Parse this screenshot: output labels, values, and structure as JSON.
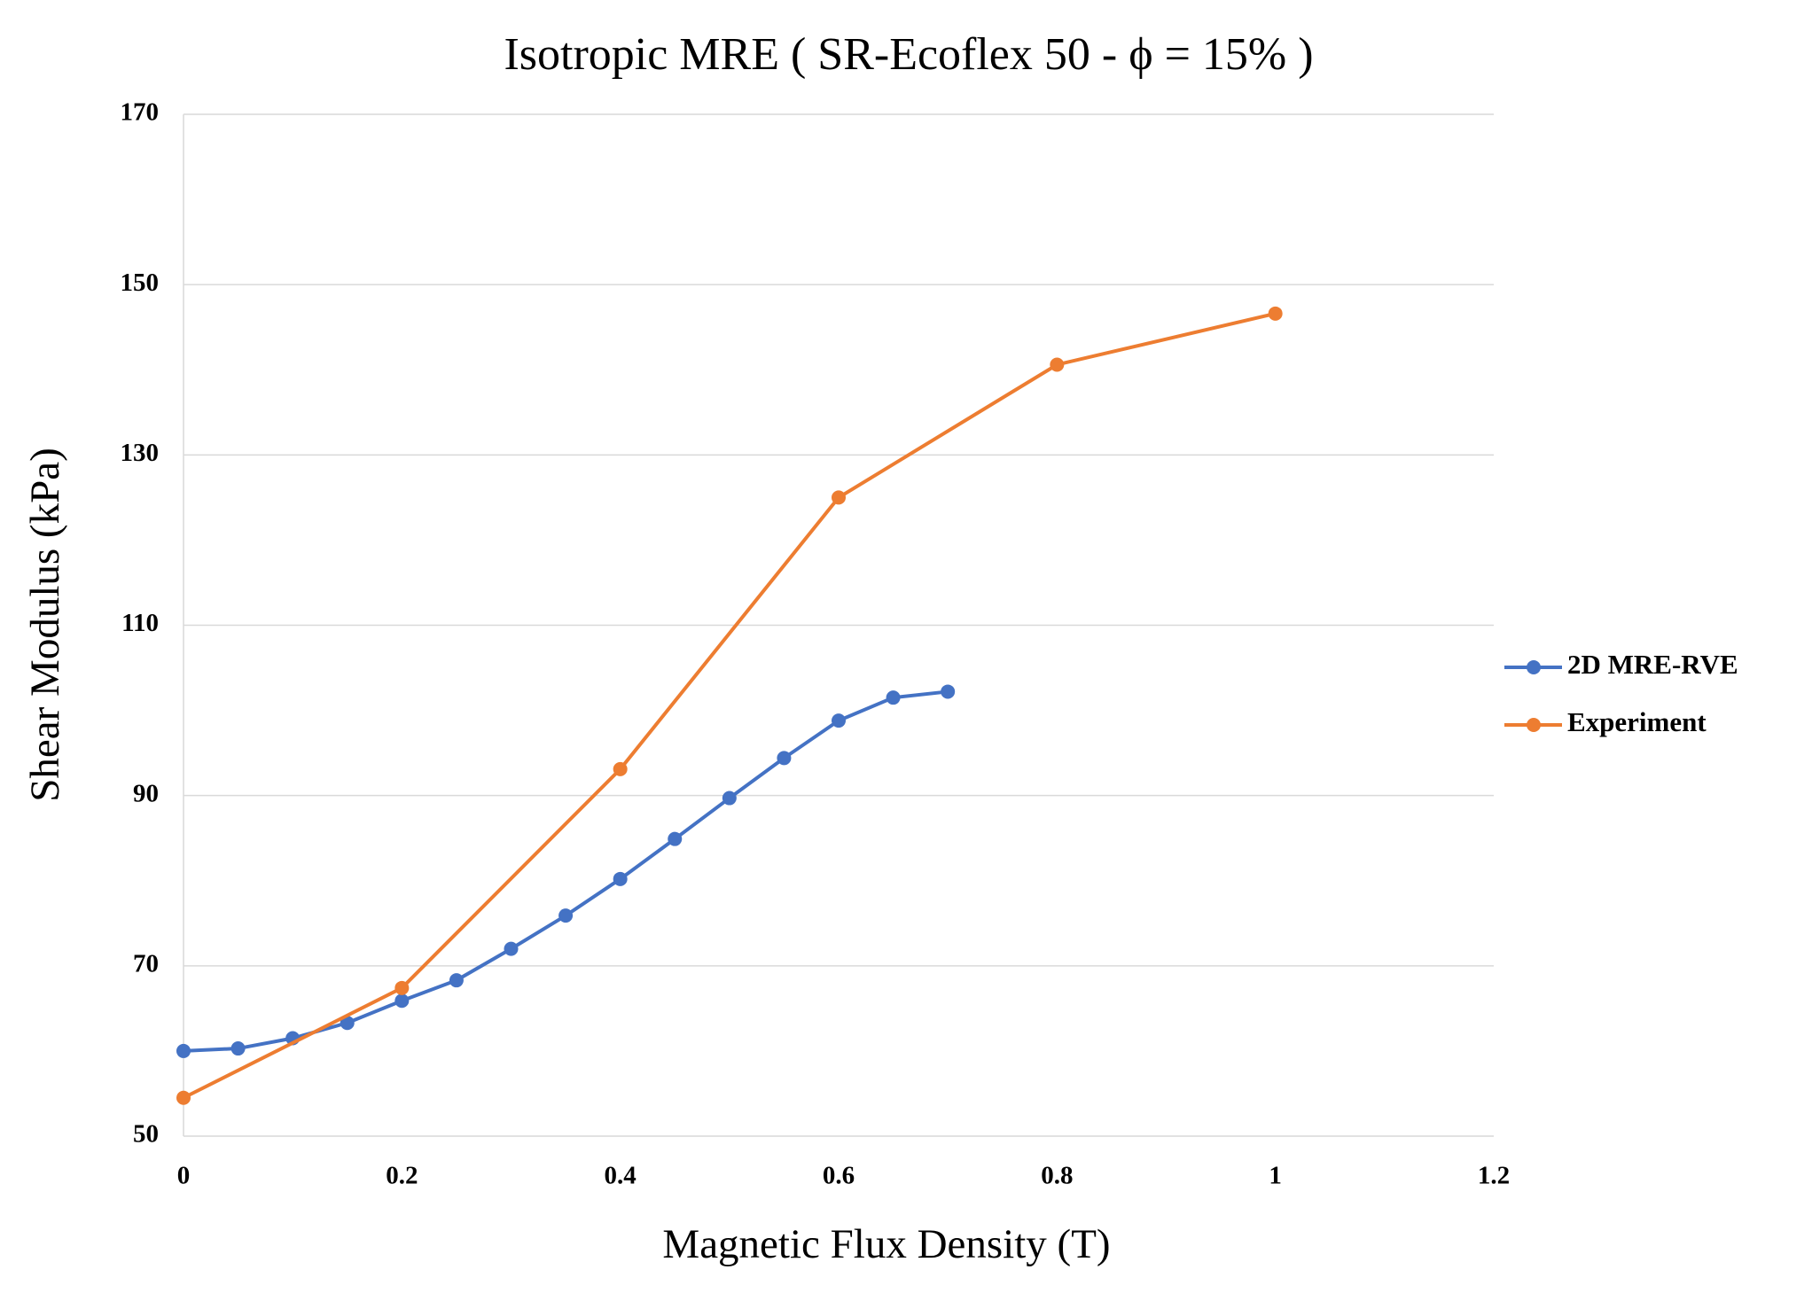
{
  "chart_data": {
    "type": "line",
    "title": "Isotropic MRE ( SR-Ecoflex 50 - ϕ = 15% )",
    "x_label": "Magnetic Flux Density (T)",
    "y_label": "Shear Modulus  (kPa)",
    "xlim": [
      0,
      1.2
    ],
    "xticks": [
      0,
      0.2,
      0.4,
      0.6,
      0.8,
      1,
      1.2
    ],
    "ylim": [
      50,
      170
    ],
    "yticks": [
      50,
      70,
      90,
      110,
      130,
      150,
      170
    ],
    "grid": true,
    "legend": "right",
    "series": [
      {
        "name": "2D MRE-RVE",
        "color": "#4472c4",
        "x": [
          0,
          0.05,
          0.1,
          0.15,
          0.2,
          0.25,
          0.3,
          0.35,
          0.4,
          0.45,
          0.5,
          0.55,
          0.6,
          0.65,
          0.7
        ],
        "values": [
          60,
          60.3,
          61.5,
          63.3,
          65.9,
          68.3,
          72.0,
          75.9,
          80.2,
          84.9,
          89.7,
          94.4,
          98.8,
          101.5,
          102.2
        ]
      },
      {
        "name": "Experiment",
        "color": "#ed7d31",
        "x": [
          0,
          0.2,
          0.4,
          0.6,
          0.8,
          1
        ],
        "values": [
          54.5,
          67.4,
          93.1,
          125.0,
          140.6,
          146.6
        ]
      }
    ]
  }
}
